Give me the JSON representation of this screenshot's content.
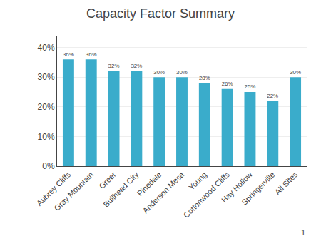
{
  "chart_data": {
    "type": "bar",
    "title": "Capacity Factor Summary",
    "categories": [
      "Aubrey Cliffs",
      "Gray Mountain",
      "Greer",
      "Bullhead City",
      "Pinedale",
      "Anderson Mesa",
      "Young",
      "Cottonwood Cliffs",
      "Hay Hollow",
      "Springerville",
      "All Sites"
    ],
    "values": [
      0.36,
      0.36,
      0.32,
      0.32,
      0.3,
      0.3,
      0.28,
      0.26,
      0.25,
      0.22,
      0.3
    ],
    "value_labels": [
      "36%",
      "36%",
      "32%",
      "32%",
      "30%",
      "30%",
      "28%",
      "26%",
      "25%",
      "22%",
      "30%"
    ],
    "data_labels": true,
    "color": "#3AACCB",
    "ylim": [
      0,
      0.44
    ],
    "yticks": [
      {
        "value": 0.0,
        "label": "0%"
      },
      {
        "value": 0.1,
        "label": "10%"
      },
      {
        "value": 0.2,
        "label": "20%"
      },
      {
        "value": 0.3,
        "label": "30%"
      },
      {
        "value": 0.4,
        "label": "40%"
      }
    ],
    "grid": true,
    "annotations": [
      "1"
    ]
  }
}
